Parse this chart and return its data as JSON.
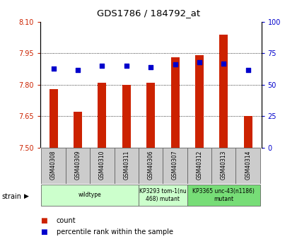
{
  "title": "GDS1786 / 184792_at",
  "samples": [
    "GSM40308",
    "GSM40309",
    "GSM40310",
    "GSM40311",
    "GSM40306",
    "GSM40307",
    "GSM40312",
    "GSM40313",
    "GSM40314"
  ],
  "count_values": [
    7.78,
    7.67,
    7.81,
    7.8,
    7.81,
    7.93,
    7.94,
    8.04,
    7.65
  ],
  "percentile_values": [
    63,
    62,
    65,
    65,
    64,
    66,
    68,
    67,
    62
  ],
  "ylim_left": [
    7.5,
    8.1
  ],
  "ylim_right": [
    0,
    100
  ],
  "yticks_left": [
    7.5,
    7.65,
    7.8,
    7.95,
    8.1
  ],
  "yticks_right": [
    0,
    25,
    50,
    75,
    100
  ],
  "bar_color": "#cc2200",
  "dot_color": "#0000cc",
  "strain_groups": [
    {
      "label": "wildtype",
      "start": 0,
      "end": 4,
      "color": "#ccffcc"
    },
    {
      "label": "KP3293 tom-1(nu\n468) mutant",
      "start": 4,
      "end": 6,
      "color": "#ccffcc"
    },
    {
      "label": "KP3365 unc-43(n1186)\nmutant",
      "start": 6,
      "end": 9,
      "color": "#77dd77"
    }
  ],
  "legend_count": "count",
  "legend_pct": "percentile rank within the sample",
  "bar_width": 0.35,
  "dot_size": 22
}
